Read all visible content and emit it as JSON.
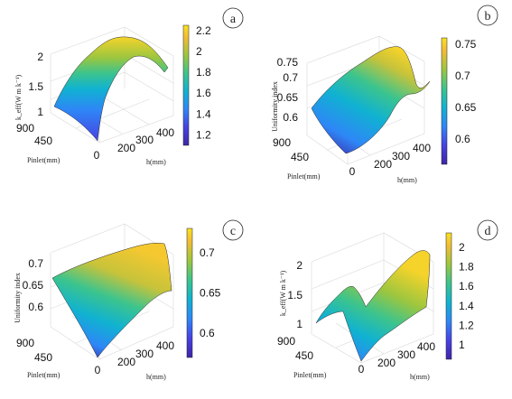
{
  "chart_data": [
    {
      "type": "surface",
      "panel_label": "a",
      "xlabel": "h(mm)",
      "ylabel": "Pinlet(mm)",
      "zlabel": "k_eff(W m k⁻¹)",
      "x_ticks": [
        "0",
        "200",
        "300",
        "400"
      ],
      "y_ticks": [
        "900",
        "450"
      ],
      "z_ticks": [
        "1",
        "1.5",
        "2"
      ],
      "colorbar_ticks": [
        "1.2",
        "1.4",
        "1.6",
        "1.8",
        "2",
        "2.2"
      ],
      "colorbar_range": [
        1.1,
        2.25
      ],
      "zlim": [
        1,
        2.3
      ]
    },
    {
      "type": "surface",
      "panel_label": "b",
      "xlabel": "h(mm)",
      "ylabel": "Pinlet(mm)",
      "zlabel": "Uniformity index",
      "x_ticks": [
        "0",
        "200",
        "300",
        "400"
      ],
      "y_ticks": [
        "900",
        "450"
      ],
      "z_ticks": [
        "0.6",
        "0.65",
        "0.7",
        "0.75"
      ],
      "colorbar_ticks": [
        "0.6",
        "0.65",
        "0.7",
        "0.75"
      ],
      "colorbar_range": [
        0.56,
        0.76
      ],
      "zlim": [
        0.56,
        0.77
      ]
    },
    {
      "type": "surface",
      "panel_label": "c",
      "xlabel": "h(mm)",
      "ylabel": "Pinlet(mm)",
      "zlabel": "Uniformity index",
      "x_ticks": [
        "0",
        "200",
        "300",
        "400"
      ],
      "y_ticks": [
        "900",
        "450"
      ],
      "z_ticks": [
        "0.6",
        "0.65",
        "0.7"
      ],
      "colorbar_ticks": [
        "0.6",
        "0.65",
        "0.7"
      ],
      "colorbar_range": [
        0.57,
        0.73
      ],
      "zlim": [
        0.56,
        0.73
      ]
    },
    {
      "type": "surface",
      "panel_label": "d",
      "xlabel": "h(mm)",
      "ylabel": "Pinlet(mm)",
      "zlabel": "k_eff(W m k⁻¹)",
      "x_ticks": [
        "0",
        "200",
        "300",
        "400"
      ],
      "y_ticks": [
        "900",
        "450"
      ],
      "z_ticks": [
        "1",
        "1.5",
        "2"
      ],
      "colorbar_ticks": [
        "1",
        "1.2",
        "1.4",
        "1.6",
        "1.8",
        "2"
      ],
      "colorbar_range": [
        0.85,
        2.15
      ],
      "zlim": [
        0.9,
        2.2
      ]
    }
  ],
  "colormap": [
    "#3e26a8",
    "#4742e3",
    "#2e87f7",
    "#10b2d1",
    "#3cc48d",
    "#9cc63f",
    "#f2bc35",
    "#f9e021"
  ]
}
